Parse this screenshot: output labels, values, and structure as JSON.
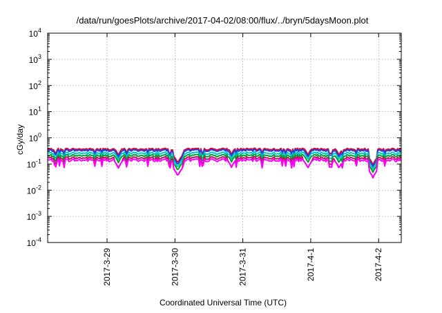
{
  "chart_data": {
    "type": "line",
    "title": "/data/run/goesPlots/archive/2017-04-02/08:00/flux/../bryn/5daysMoon.plot",
    "xlabel": "Coordinated Universal Time (UTC)",
    "ylabel": "cGy/day",
    "y_scale": "log",
    "ylim": [
      0.0001,
      10000
    ],
    "xlim": [
      "2017-03-28 03:00",
      "2017-04-02 08:00"
    ],
    "grid": true,
    "legend": "none",
    "y_ticks": [
      {
        "base": "10",
        "exp": "4"
      },
      {
        "base": "10",
        "exp": "3"
      },
      {
        "base": "10",
        "exp": "2"
      },
      {
        "base": "10",
        "exp": "1"
      },
      {
        "base": "10",
        "exp": "0"
      },
      {
        "base": "10",
        "exp": "-1"
      },
      {
        "base": "10",
        "exp": "-2"
      },
      {
        "base": "10",
        "exp": "-3"
      },
      {
        "base": "10",
        "exp": "-4"
      }
    ],
    "x_ticks": [
      "2017-3-29",
      "2017-3-30",
      "2017-3-31",
      "2017-4-1",
      "2017-4-2"
    ],
    "series": [
      {
        "color": "#e8002a",
        "baseline": 0.37
      },
      {
        "color": "#2040e0",
        "baseline": 0.33
      },
      {
        "color": "#00c8c8",
        "baseline": 0.26
      },
      {
        "color": "#00a030",
        "baseline": 0.21
      },
      {
        "color": "#c01060",
        "baseline": 0.17
      },
      {
        "color": "#ff00ff",
        "baseline": 0.14
      }
    ],
    "dips": [
      {
        "x": "2017-03-29 04:00",
        "min": 0.07
      },
      {
        "x": "2017-03-30 01:00",
        "min": 0.035
      },
      {
        "x": "2017-03-30 20:00",
        "min": 0.075
      },
      {
        "x": "2017-03-31 23:00",
        "min": 0.07
      },
      {
        "x": "2017-04-01 10:00",
        "min": 0.07
      },
      {
        "x": "2017-04-01 22:00",
        "min": 0.03
      }
    ]
  }
}
